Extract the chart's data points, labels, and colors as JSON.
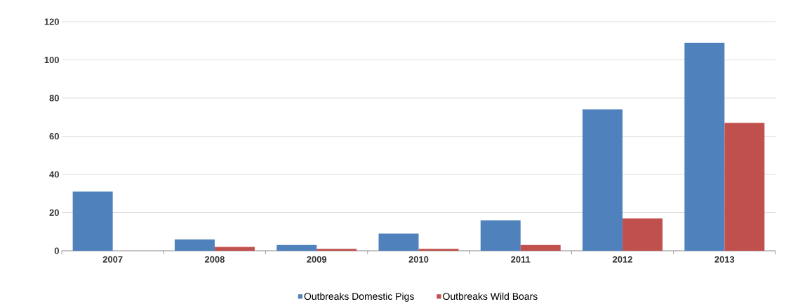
{
  "chart_data": {
    "type": "bar",
    "categories": [
      "2007",
      "2008",
      "2009",
      "2010",
      "2011",
      "2012",
      "2013"
    ],
    "series": [
      {
        "name": "Outbreaks Domestic Pigs",
        "color": "#4f81bd",
        "values": [
          31,
          6,
          3,
          9,
          16,
          74,
          109
        ]
      },
      {
        "name": "Outbreaks Wild Boars",
        "color": "#c0504d",
        "values": [
          0,
          2,
          1,
          1,
          3,
          17,
          67
        ]
      }
    ],
    "ylim": [
      0,
      120
    ],
    "yticks": [
      0,
      20,
      40,
      60,
      80,
      100,
      120
    ],
    "grid": "y",
    "legend": "bottom"
  }
}
